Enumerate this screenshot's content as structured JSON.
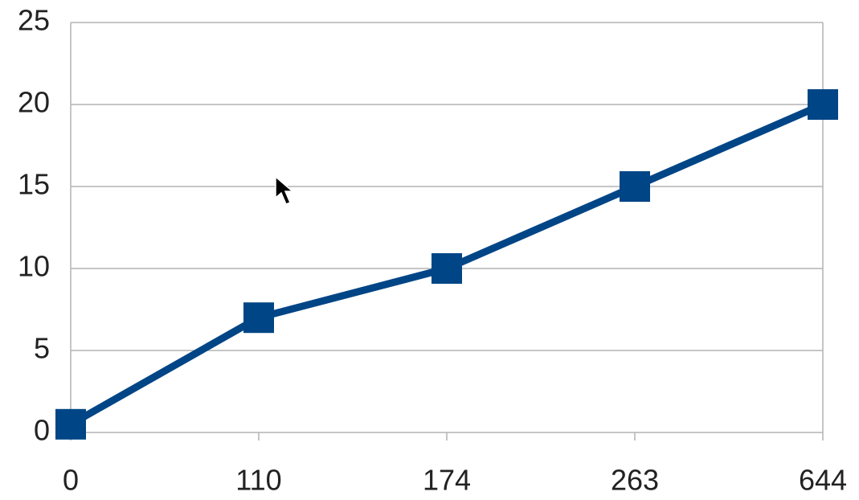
{
  "chart_data": {
    "type": "line",
    "categories": [
      "0",
      "110",
      "174",
      "263",
      "644"
    ],
    "values": [
      0.5,
      7,
      10,
      15,
      20
    ],
    "color": "#004586",
    "marker": "square",
    "ylim": [
      0,
      25
    ],
    "yticks": [
      0,
      5,
      10,
      15,
      20,
      25
    ],
    "grid": true
  }
}
